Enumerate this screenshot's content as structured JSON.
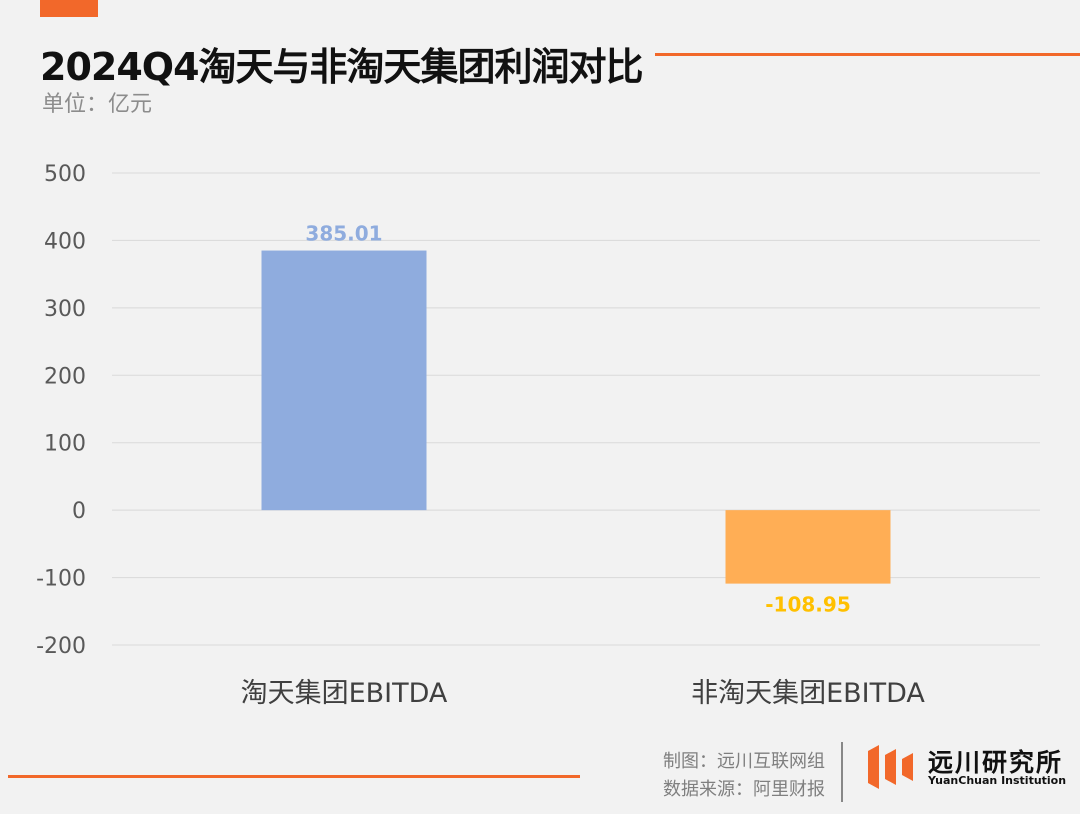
{
  "title": "2024Q4淘天与非淘天集团利润对比",
  "subtitle": "单位：亿元",
  "colors": {
    "accent": "#f2682a",
    "series_taotian": "#8facde",
    "series_non_taotian": "#ffae55",
    "label_taotian": "#8facde",
    "label_non_taotian": "#ffc000"
  },
  "chart_data": {
    "type": "bar",
    "categories": [
      "淘天集团EBITDA",
      "非淘天集团EBITDA"
    ],
    "values": [
      385.01,
      -108.95
    ],
    "value_labels": [
      "385.01",
      "-108.95"
    ],
    "ylim": [
      -200,
      500
    ],
    "yticks": [
      500,
      400,
      300,
      200,
      100,
      0,
      -100,
      -200
    ],
    "ytick_labels": [
      "500",
      "400",
      "300",
      "200",
      "100",
      "0",
      "-100",
      "-200"
    ],
    "grid": true,
    "legend": "none"
  },
  "footer": {
    "credit_chart": "制图：远川互联网组",
    "credit_source": "数据来源：阿里财报",
    "logo_icon": "yuanchuan-logo-icon",
    "logo_name": "远川研究所",
    "logo_en": "YuanChuan Institution"
  }
}
